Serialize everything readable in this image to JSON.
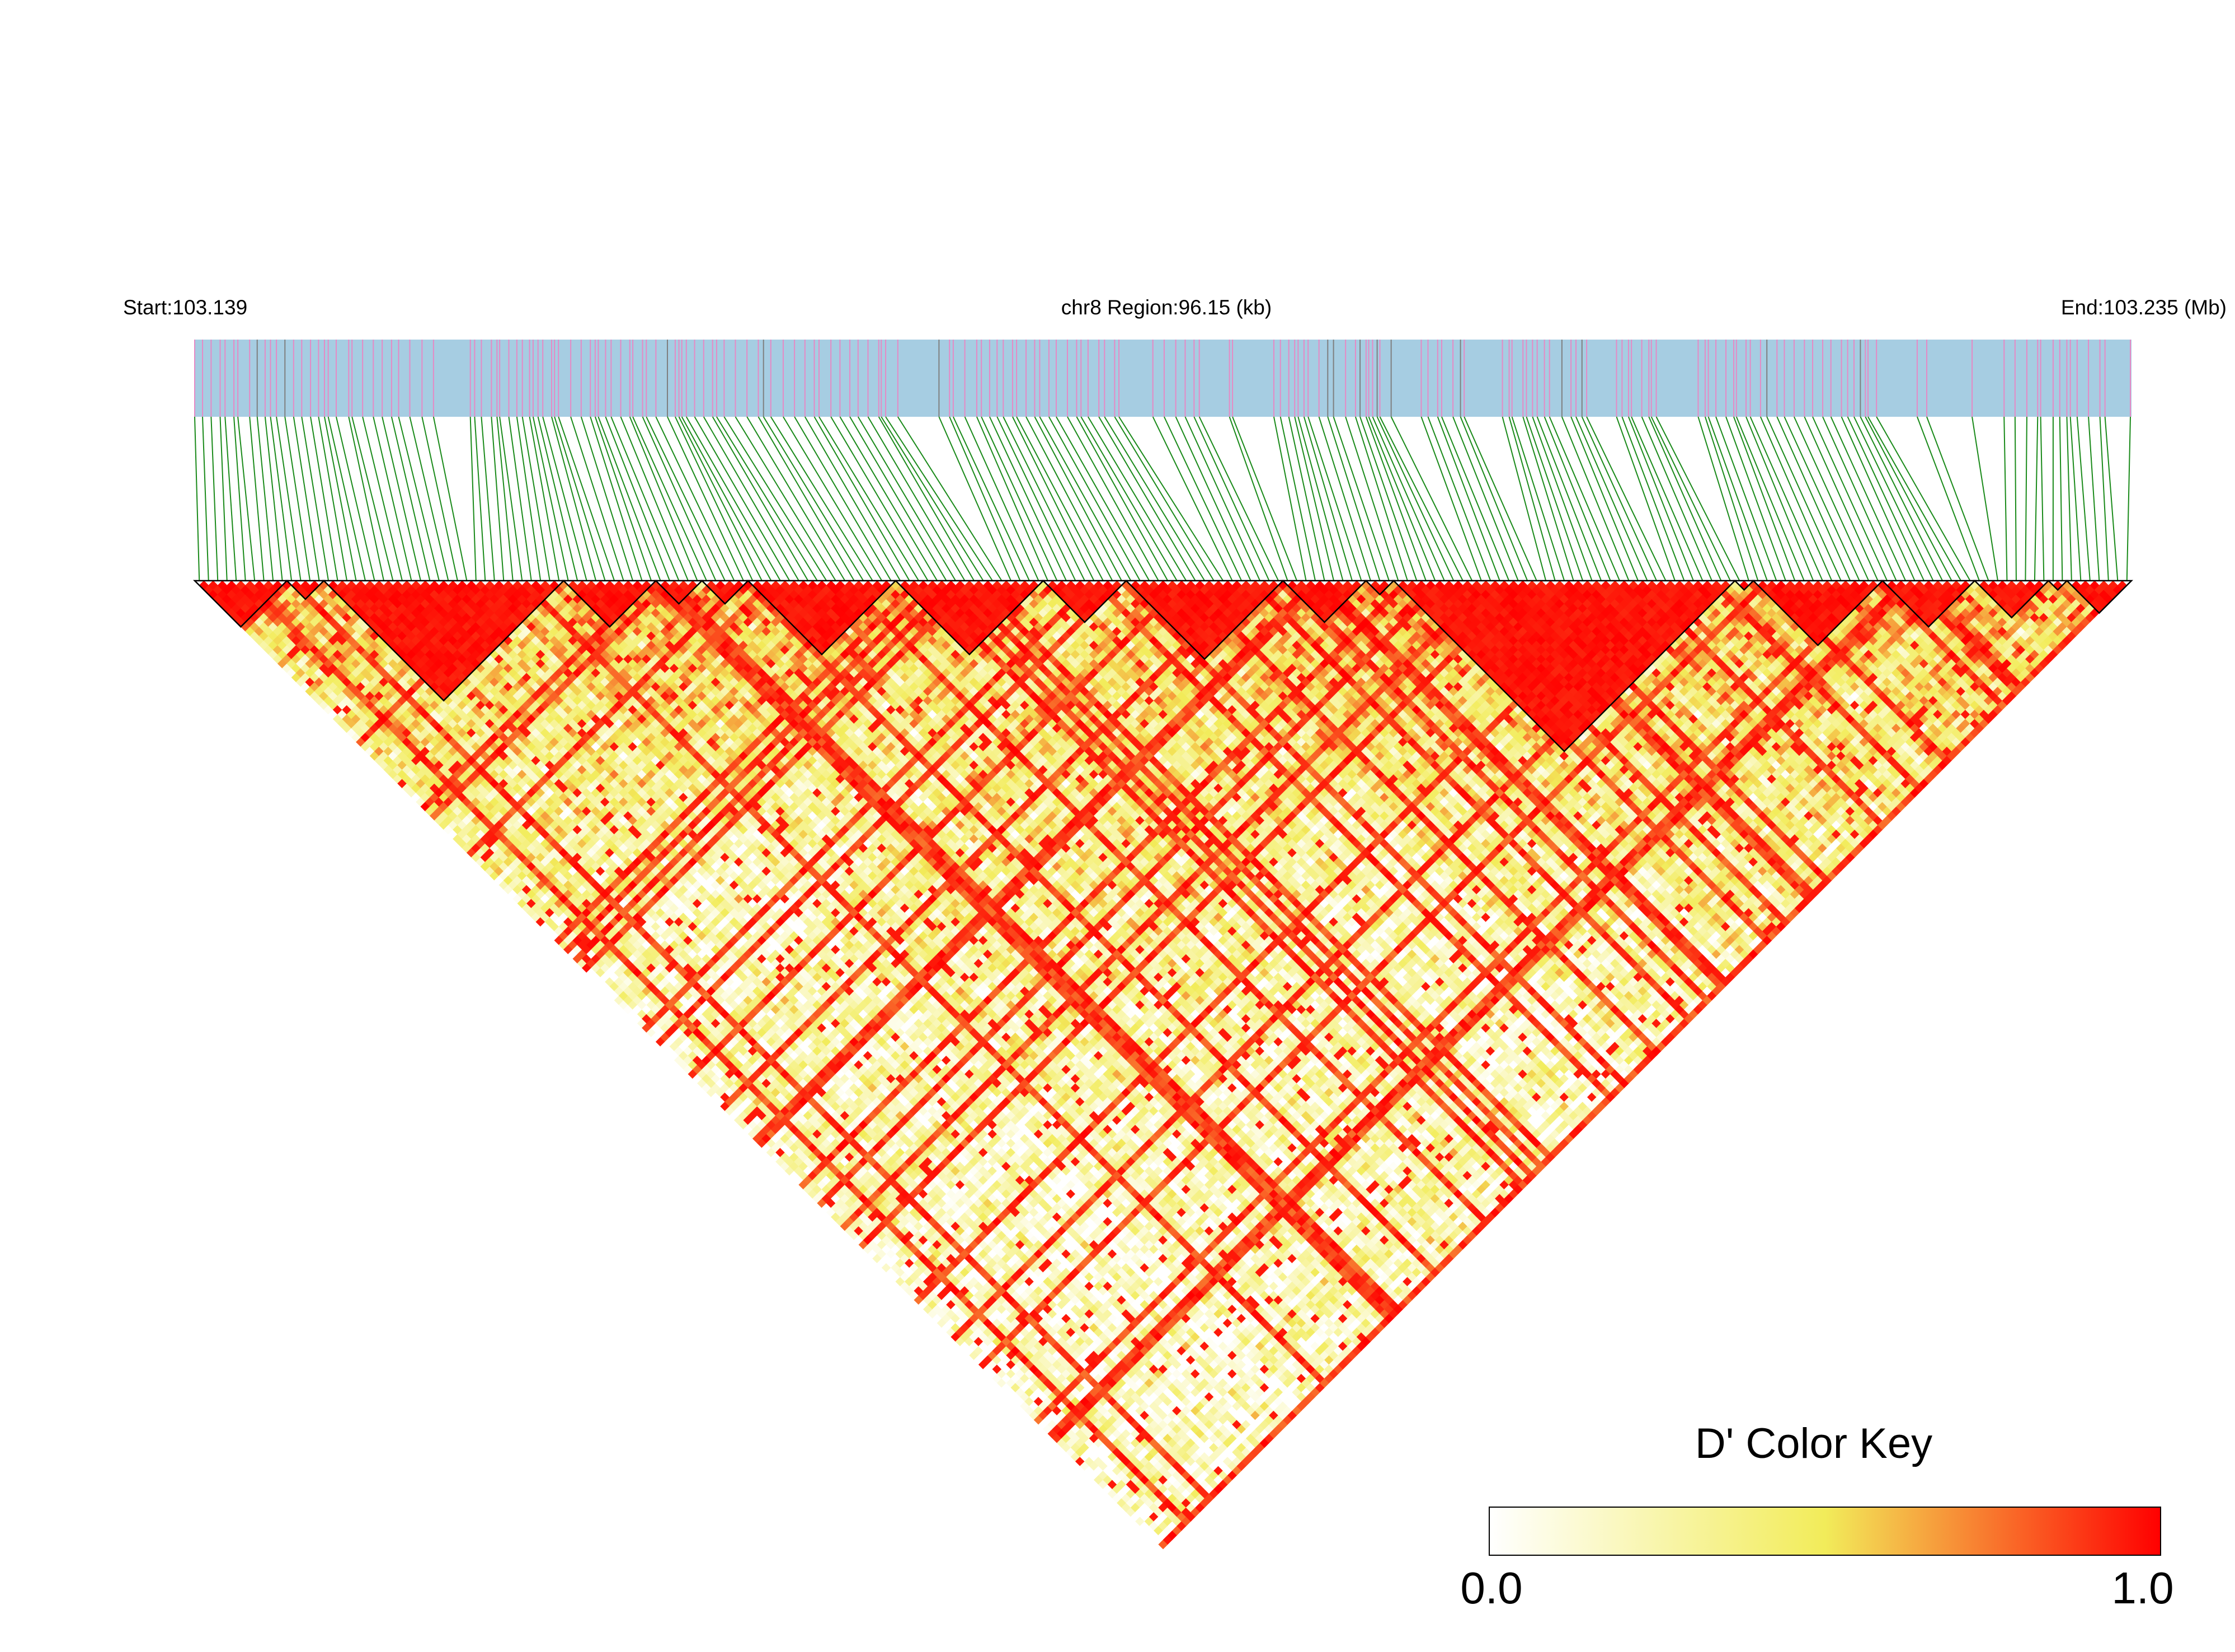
{
  "header": {
    "start_label": "Start:103.139",
    "region_label": "chr8 Region:96.15 (kb)",
    "end_label": "End:103.235 (Mb)"
  },
  "colors": {
    "track_background": "#a6cde2",
    "snp_tick": "#e58ac5",
    "dense_tick": "#7f7f7f",
    "connector_line": "#1a8a1a",
    "block_outline": "#000000",
    "scale": [
      "#ffffff",
      "#f2ec5a",
      "#ff0000"
    ]
  },
  "color_key": {
    "title": "D' Color Key",
    "min_label": "0.0",
    "max_label": "1.0",
    "min": 0,
    "max": 1
  },
  "ld_map": {
    "n_snps": 210,
    "region_kb": 96.15,
    "blocks": [
      {
        "start": 0,
        "end": 10
      },
      {
        "start": 10,
        "end": 14
      },
      {
        "start": 14,
        "end": 40
      },
      {
        "start": 40,
        "end": 50
      },
      {
        "start": 50,
        "end": 55
      },
      {
        "start": 55,
        "end": 60
      },
      {
        "start": 60,
        "end": 76
      },
      {
        "start": 76,
        "end": 92
      },
      {
        "start": 92,
        "end": 101
      },
      {
        "start": 101,
        "end": 118
      },
      {
        "start": 118,
        "end": 127
      },
      {
        "start": 127,
        "end": 130
      },
      {
        "start": 130,
        "end": 167
      },
      {
        "start": 167,
        "end": 169
      },
      {
        "start": 169,
        "end": 183
      },
      {
        "start": 183,
        "end": 193
      },
      {
        "start": 193,
        "end": 201
      },
      {
        "start": 201,
        "end": 203
      },
      {
        "start": 203,
        "end": 210
      }
    ]
  }
}
